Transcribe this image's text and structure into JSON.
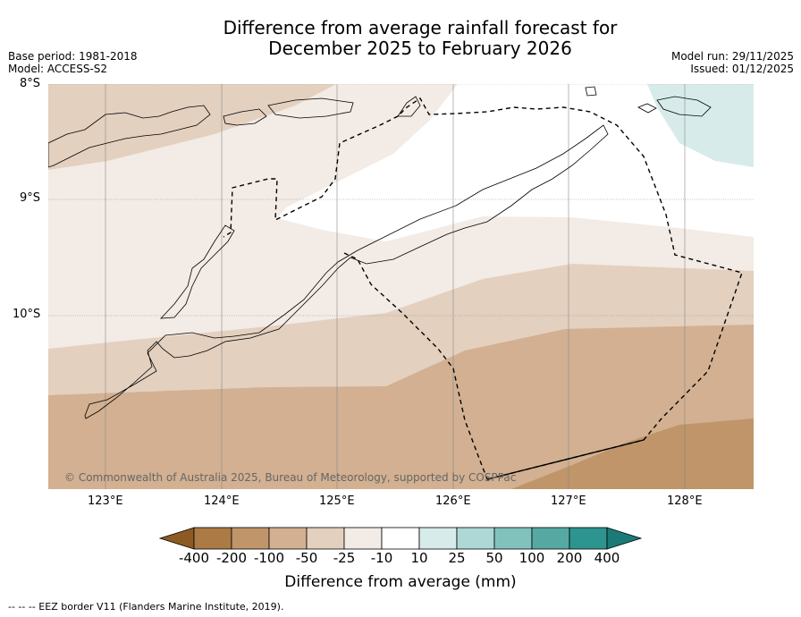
{
  "title": {
    "line1": "Difference from average rainfall forecast for",
    "line2": "December 2025 to February 2026"
  },
  "meta_left": {
    "base_period": "Base period: 1981-2018",
    "model": "Model: ACCESS-S2"
  },
  "meta_right": {
    "model_run": "Model run: 29/11/2025",
    "issued": "Issued: 01/12/2025"
  },
  "map": {
    "lat_labels": [
      "8°S",
      "9°S",
      "10°S"
    ],
    "lon_labels": [
      "123°E",
      "124°E",
      "125°E",
      "126°E",
      "127°E",
      "128°E"
    ],
    "copyright": "© Commonwealth of Australia 2025, Bureau of Meteorology, supported by COSPPac"
  },
  "legend": {
    "title": "Difference from average (mm)",
    "tick_labels": [
      "-400",
      "-200",
      "-100",
      "-50",
      "-25",
      "-10",
      "10",
      "25",
      "50",
      "100",
      "200",
      "400"
    ],
    "colors": [
      "#8d5a24",
      "#ab7a45",
      "#bf9569",
      "#d2b091",
      "#e3d0bf",
      "#f3ebe5",
      "#ffffff",
      "#d7ecea",
      "#aed8d5",
      "#81c2bd",
      "#56a9a3",
      "#2e948f",
      "#1b7a77"
    ]
  },
  "footnote": "--  --  -- EEZ border V11 (Flanders Marine Institute, 2019)."
}
